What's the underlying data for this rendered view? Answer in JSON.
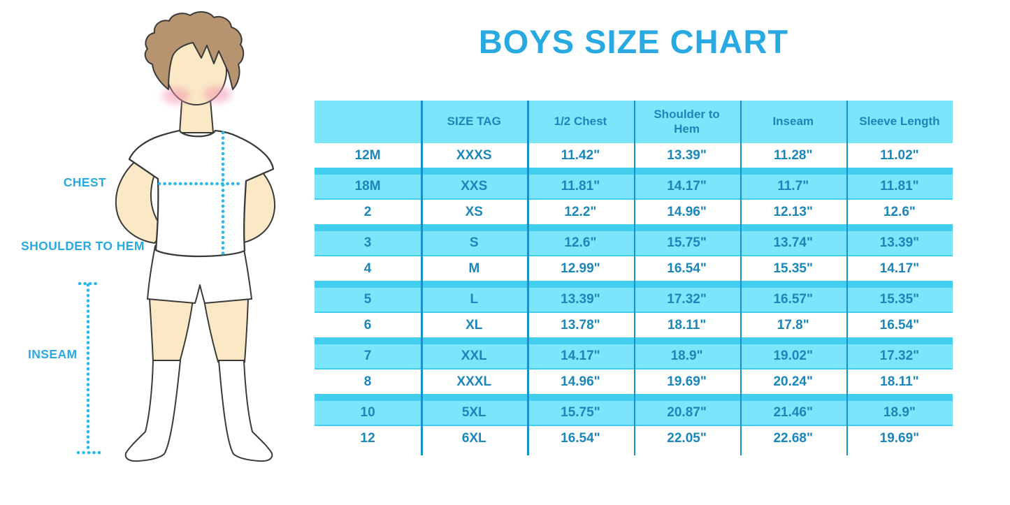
{
  "title": "BOYS SIZE CHART",
  "figure": {
    "labels": {
      "chest": "CHEST",
      "shoulder_to_hem": "SHOULDER TO HEM",
      "inseam": "INSEAM"
    }
  },
  "chart_data": {
    "type": "table",
    "title": "BOYS SIZE CHART",
    "columns": [
      "",
      "SIZE TAG",
      "1/2 Chest",
      "Shoulder to Hem",
      "Inseam",
      "Sleeve Length"
    ],
    "rows": [
      [
        "12M",
        "XXXS",
        "11.42\"",
        "13.39\"",
        "11.28\"",
        "11.02\""
      ],
      [
        "18M",
        "XXS",
        "11.81\"",
        "14.17\"",
        "11.7\"",
        "11.81\""
      ],
      [
        "2",
        "XS",
        "12.2\"",
        "14.96\"",
        "12.13\"",
        "12.6\""
      ],
      [
        "3",
        "S",
        "12.6\"",
        "15.75\"",
        "13.74\"",
        "13.39\""
      ],
      [
        "4",
        "M",
        "12.99\"",
        "16.54\"",
        "15.35\"",
        "14.17\""
      ],
      [
        "5",
        "L",
        "13.39\"",
        "17.32\"",
        "16.57\"",
        "15.35\""
      ],
      [
        "6",
        "XL",
        "13.78\"",
        "18.11\"",
        "17.8\"",
        "16.54\""
      ],
      [
        "7",
        "XXL",
        "14.17\"",
        "18.9\"",
        "19.02\"",
        "17.32\""
      ],
      [
        "8",
        "XXXL",
        "14.96\"",
        "19.69\"",
        "20.24\"",
        "18.11\""
      ],
      [
        "10",
        "5XL",
        "15.75\"",
        "20.87\"",
        "21.46\"",
        "18.9\""
      ],
      [
        "12",
        "6XL",
        "16.54\"",
        "22.05\"",
        "22.68\"",
        "19.69\""
      ]
    ]
  },
  "colors": {
    "accent_blue": "#29A9E1",
    "stripe_fill": "#7CE5FB",
    "stripe_edge": "#41CEEF",
    "divider_blue": "#1791C9",
    "cell_text": "#1B86B9",
    "dotted_line": "#2CB9E8",
    "skin": "#FBE9C6",
    "hair": "#B5946F"
  }
}
